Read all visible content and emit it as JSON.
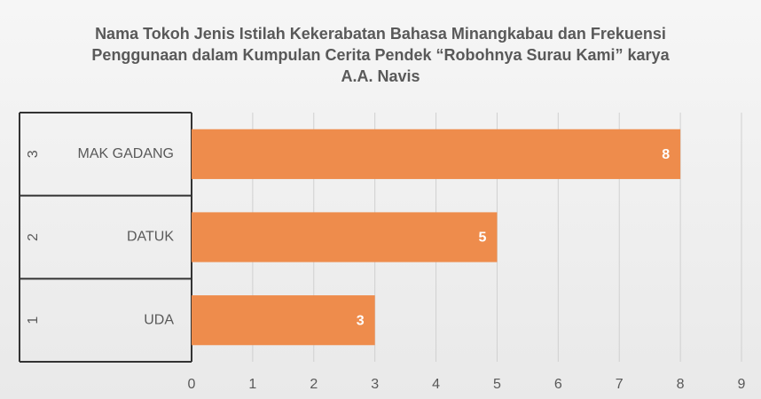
{
  "chart_data": {
    "type": "hbar",
    "title": "Nama Tokoh Jenis Istilah Kekerabatan Bahasa Minangkabau dan Frekuensi Penggunaan dalam Kumpulan Cerita Pendek “Robohnya Surau Kami” karya A.A. Navis",
    "categories": [
      "UDA",
      "DATUK",
      "MAK GADANG"
    ],
    "category_groups": [
      "1",
      "2",
      "3"
    ],
    "values": [
      3,
      5,
      8
    ],
    "color": "#ee8c4c",
    "xlim": [
      0,
      9
    ],
    "xticks": [
      0,
      1,
      2,
      3,
      4,
      5,
      6,
      7,
      8,
      9
    ],
    "grid": true
  }
}
